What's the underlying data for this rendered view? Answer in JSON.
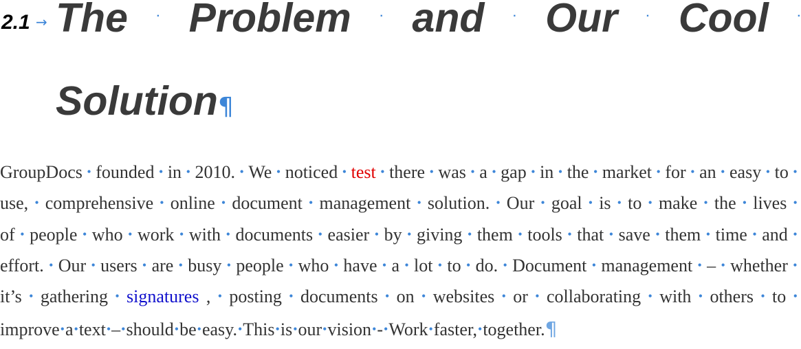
{
  "heading": {
    "number": "2.1",
    "arrow": "→",
    "line1_words": [
      "The",
      "Problem",
      "and",
      "Our",
      "Cool"
    ],
    "line2_word": "Solution",
    "pilcrow": "¶"
  },
  "paragraph": {
    "lines": [
      [
        {
          "t": "GroupDocs"
        },
        {
          "t": "founded"
        },
        {
          "t": "in"
        },
        {
          "t": "2010."
        },
        {
          "t": "We"
        },
        {
          "t": "noticed"
        },
        {
          "t": "test",
          "c": "red"
        },
        {
          "t": "there"
        },
        {
          "t": "was"
        },
        {
          "t": "a"
        },
        {
          "t": "gap"
        },
        {
          "t": "in"
        },
        {
          "t": "the"
        },
        {
          "t": "market"
        },
        {
          "t": "for"
        },
        {
          "t": "an"
        },
        {
          "t": "easy"
        },
        {
          "t": "to"
        }
      ],
      [
        {
          "t": "use,"
        },
        {
          "t": "comprehensive"
        },
        {
          "t": "online"
        },
        {
          "t": "document"
        },
        {
          "t": "management"
        },
        {
          "t": "solution."
        },
        {
          "t": "Our"
        },
        {
          "t": "goal"
        },
        {
          "t": "is"
        },
        {
          "t": "to"
        },
        {
          "t": "make"
        },
        {
          "t": "the"
        },
        {
          "t": "lives"
        }
      ],
      [
        {
          "t": "of"
        },
        {
          "t": "people"
        },
        {
          "t": "who"
        },
        {
          "t": "work"
        },
        {
          "t": "with"
        },
        {
          "t": "documents"
        },
        {
          "t": "easier"
        },
        {
          "t": "by"
        },
        {
          "t": "giving"
        },
        {
          "t": "them"
        },
        {
          "t": "tools"
        },
        {
          "t": "that"
        },
        {
          "t": "save"
        },
        {
          "t": "them"
        },
        {
          "t": "time"
        },
        {
          "t": "and"
        }
      ],
      [
        {
          "t": "effort."
        },
        {
          "t": "Our"
        },
        {
          "t": "users"
        },
        {
          "t": "are"
        },
        {
          "t": "busy"
        },
        {
          "t": "people"
        },
        {
          "t": "who"
        },
        {
          "t": "have"
        },
        {
          "t": "a"
        },
        {
          "t": "lot"
        },
        {
          "t": "to"
        },
        {
          "t": "do."
        },
        {
          "t": "Document"
        },
        {
          "t": "management"
        },
        {
          "t": "–"
        },
        {
          "t": "whether"
        }
      ],
      [
        {
          "t": "it’s"
        },
        {
          "t": "gathering"
        },
        {
          "t": "signatures",
          "c": "blue"
        },
        {
          "t": ","
        },
        {
          "t": "posting"
        },
        {
          "t": "documents"
        },
        {
          "t": "on"
        },
        {
          "t": "websites"
        },
        {
          "t": "or"
        },
        {
          "t": "collaborating"
        },
        {
          "t": "with"
        },
        {
          "t": "others"
        },
        {
          "t": "to"
        }
      ],
      [
        {
          "t": "improve"
        },
        {
          "t": "a"
        },
        {
          "t": "text"
        },
        {
          "t": "–"
        },
        {
          "t": "should"
        },
        {
          "t": "be"
        },
        {
          "t": "easy."
        },
        {
          "t": "This"
        },
        {
          "t": "is"
        },
        {
          "t": "our"
        },
        {
          "t": "vision"
        },
        {
          "t": "-"
        },
        {
          "t": "Work"
        },
        {
          "t": "faster,"
        },
        {
          "t": "together."
        }
      ]
    ],
    "end_pilcrow": "¶"
  },
  "colors": {
    "formatting_marks": "#3d86d8",
    "heading_text": "#3a3a3a",
    "body_text": "#333333",
    "red_word": "#e00000",
    "blue_word": "#1010cc"
  }
}
